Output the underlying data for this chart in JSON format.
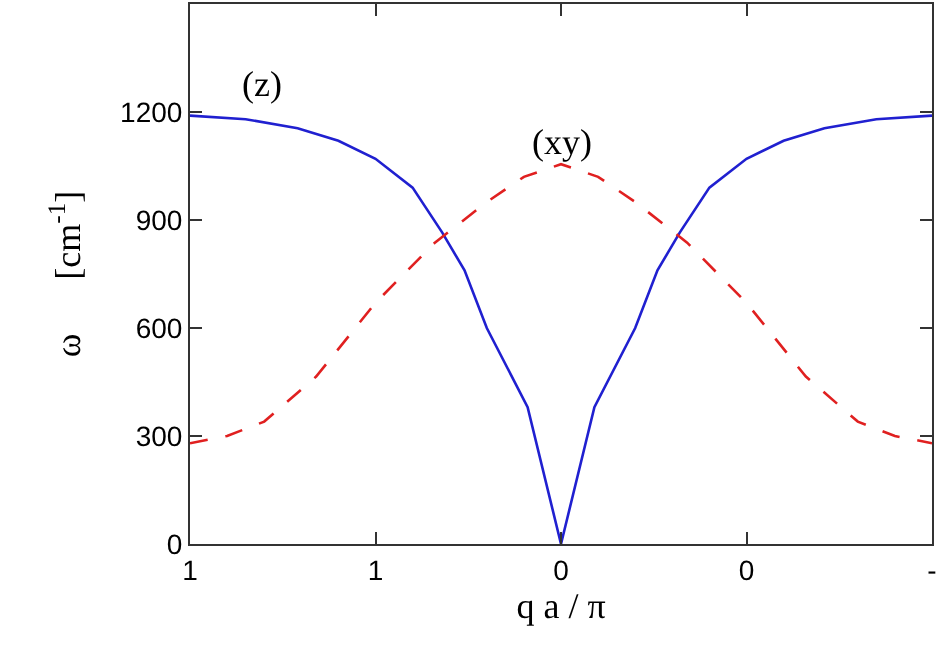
{
  "chart_data": {
    "type": "line",
    "xlabel": "q a / π",
    "ylabel": "ω      [cm$^{-1}$]",
    "xlim": [
      -1,
      1
    ],
    "xticks": [
      {
        "value": -1,
        "label": "1"
      },
      {
        "value": -0.5,
        "label": "1"
      },
      {
        "value": 0,
        "label": "0"
      },
      {
        "value": 0.5,
        "label": "0"
      },
      {
        "value": 1,
        "label": "-"
      }
    ],
    "ylim": [
      0,
      1500
    ],
    "yticks": [
      0,
      300,
      600,
      900,
      1200
    ],
    "marker": "none",
    "series": [
      {
        "color": "#2020d0",
        "line_style": "solid",
        "x": [
          -1,
          -0.85,
          -0.71,
          -0.6,
          -0.5,
          -0.4,
          -0.32,
          -0.26,
          -0.2,
          -0.09,
          0,
          0.09,
          0.2,
          0.26,
          0.32,
          0.4,
          0.5,
          0.6,
          0.71,
          0.85,
          1
        ],
        "values": [
          1190,
          1180,
          1155,
          1120,
          1070,
          990,
          865,
          760,
          600,
          380,
          0,
          380,
          600,
          760,
          865,
          990,
          1070,
          1120,
          1155,
          1180,
          1190
        ]
      },
      {
        "color": "#e02020",
        "line_style": "dashed",
        "x": [
          -1,
          -0.9,
          -0.8,
          -0.66,
          -0.5,
          -0.34,
          -0.2,
          -0.1,
          0,
          0.1,
          0.2,
          0.34,
          0.5,
          0.66,
          0.8,
          0.9,
          1
        ],
        "values": [
          280,
          300,
          340,
          465,
          670,
          837,
          950,
          1020,
          1055,
          1020,
          950,
          837,
          670,
          465,
          340,
          300,
          280
        ]
      }
    ],
    "annotations": [
      "(z)",
      "(xy)"
    ]
  }
}
